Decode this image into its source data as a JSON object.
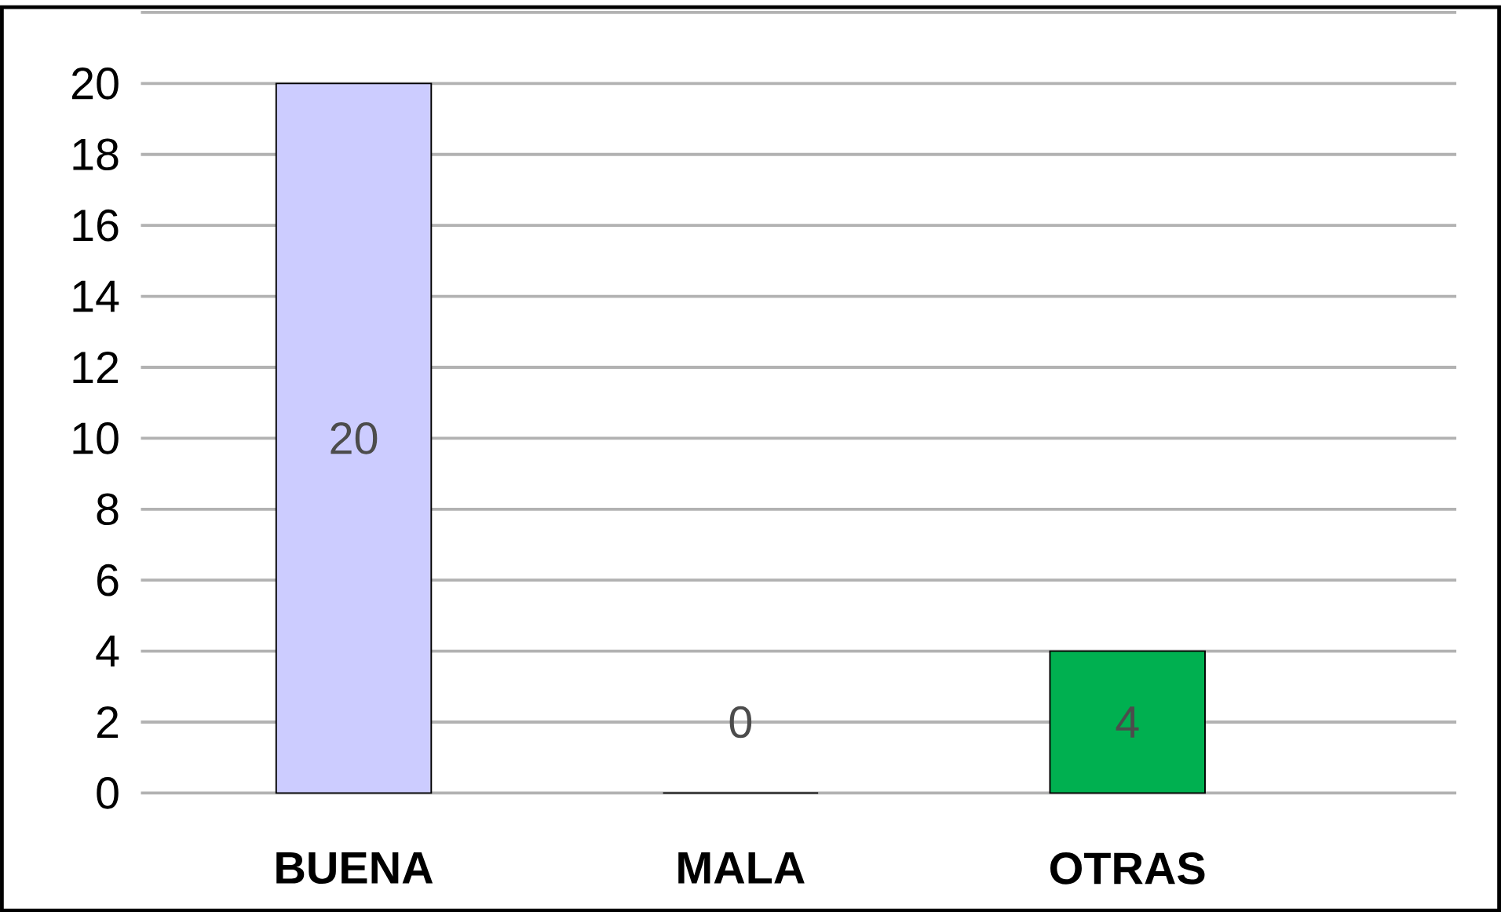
{
  "chart_data": {
    "type": "bar",
    "categories": [
      "BUENA",
      "MALA",
      "OTRAS"
    ],
    "values": [
      20,
      0,
      4
    ],
    "colors": [
      "#ccccff",
      "#c04fc0",
      "#00b050"
    ],
    "ylim": [
      0,
      22
    ],
    "yticks": [
      0,
      2,
      4,
      6,
      8,
      10,
      12,
      14,
      16,
      18,
      20,
      {
        "value": 22,
        "label": null
      }
    ],
    "grid": "y",
    "data_labels": true
  }
}
